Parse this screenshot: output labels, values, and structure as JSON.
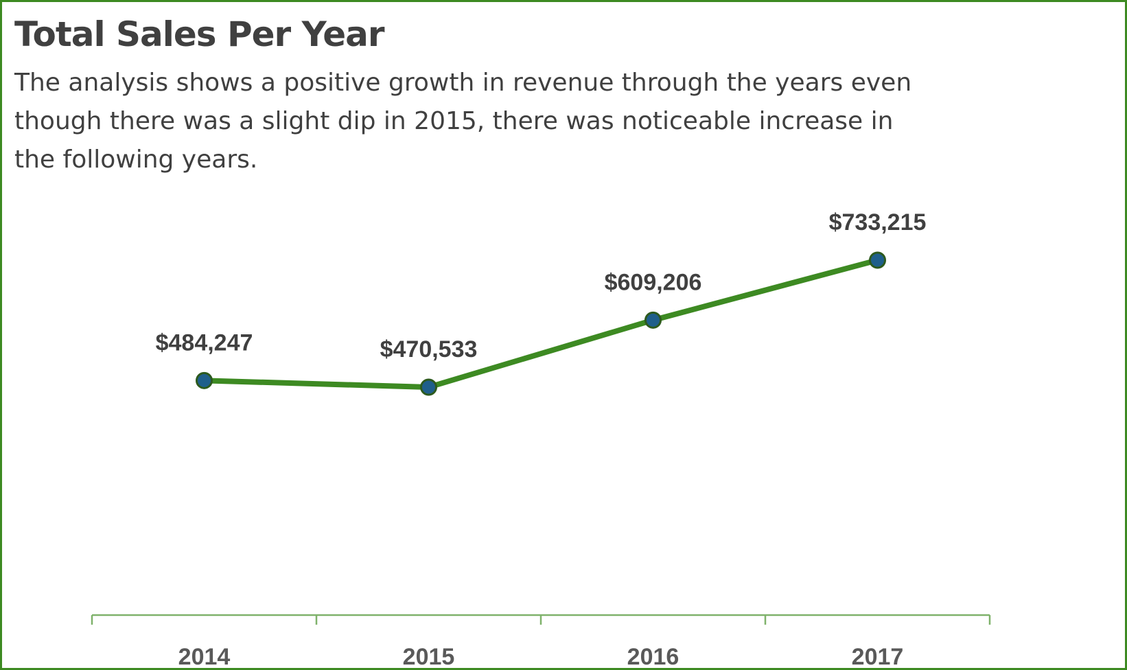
{
  "title": "Total Sales Per Year",
  "subtitle": "The analysis shows a positive growth in revenue through the years even though there was a slight dip in 2015, there was noticeable increase in the following years.",
  "colors": {
    "border": "#3d8a22",
    "line": "#3d8a22",
    "marker_fill": "#1f5f8b",
    "marker_stroke": "#2d5a1e",
    "axis": "#7fb26b",
    "text": "#404040"
  },
  "chart_data": {
    "type": "line",
    "categories": [
      "2014",
      "2015",
      "2016",
      "2017"
    ],
    "values": [
      484247,
      470533,
      609206,
      733215
    ],
    "data_labels": [
      "$484,247",
      "$470,533",
      "$609,206",
      "$733,215"
    ],
    "grid": false,
    "legend": "none",
    "y_axis_visible": false,
    "markers": "circle"
  }
}
